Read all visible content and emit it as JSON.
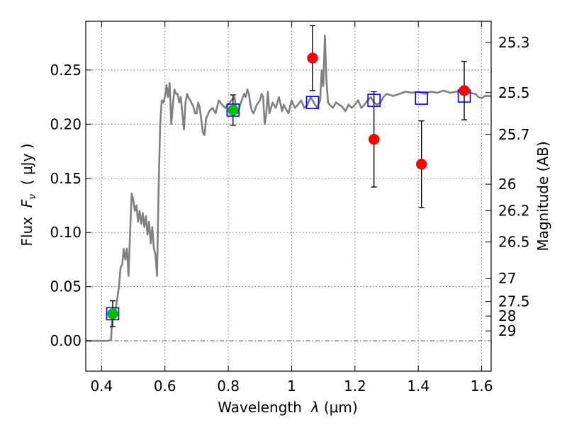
{
  "chart_data": {
    "type": "scatter",
    "xlabel_text": "Wavelength",
    "xlabel_symbol": "λ",
    "xlabel_unit": "(μm)",
    "ylabel_text": "Flux",
    "ylabel_symbol": "F",
    "ylabel_subscript": "ν",
    "ylabel_unit": "( μJy )",
    "y2label": "Magnitude (AB)",
    "xlim": [
      0.35,
      1.63
    ],
    "ylim": [
      -0.028,
      0.295
    ],
    "grid": true,
    "grid_style": "dotted",
    "xticks": [
      {
        "value": 0.4,
        "label": "0.4"
      },
      {
        "value": 0.6,
        "label": "0.6"
      },
      {
        "value": 0.8,
        "label": "0.8"
      },
      {
        "value": 1.0,
        "label": "1"
      },
      {
        "value": 1.2,
        "label": "1.2"
      },
      {
        "value": 1.4,
        "label": "1.4"
      },
      {
        "value": 1.6,
        "label": "1.6"
      }
    ],
    "yticks": [
      {
        "value": 0.0,
        "label": "0.00"
      },
      {
        "value": 0.05,
        "label": "0.05"
      },
      {
        "value": 0.1,
        "label": "0.10"
      },
      {
        "value": 0.15,
        "label": "0.15"
      },
      {
        "value": 0.2,
        "label": "0.20"
      },
      {
        "value": 0.25,
        "label": "0.25"
      }
    ],
    "magnitude_ticks": [
      {
        "mag": 25.3,
        "label": "25.3"
      },
      {
        "mag": 25.5,
        "label": "25.5"
      },
      {
        "mag": 25.7,
        "label": "25.7"
      },
      {
        "mag": 26.0,
        "label": "26"
      },
      {
        "mag": 26.2,
        "label": "26.2"
      },
      {
        "mag": 26.5,
        "label": "26.5"
      },
      {
        "mag": 27.0,
        "label": "27"
      },
      {
        "mag": 27.5,
        "label": "27.5"
      },
      {
        "mag": 28.0,
        "label": "28"
      },
      {
        "mag": 29.0,
        "label": "29"
      }
    ],
    "zero_line": {
      "value": 0.0,
      "color": "#555555",
      "style": "dash-dot"
    },
    "series": [
      {
        "kind": "line",
        "role": "model-sed",
        "color": "#808080",
        "points": [
          [
            0.35,
            0.0
          ],
          [
            0.42,
            0.0
          ],
          [
            0.43,
            0.001
          ],
          [
            0.433,
            0.02
          ],
          [
            0.44,
            0.02
          ],
          [
            0.45,
            0.04
          ],
          [
            0.455,
            0.05
          ],
          [
            0.46,
            0.068
          ],
          [
            0.465,
            0.07
          ],
          [
            0.47,
            0.085
          ],
          [
            0.475,
            0.075
          ],
          [
            0.48,
            0.085
          ],
          [
            0.485,
            0.06
          ],
          [
            0.49,
            0.1
          ],
          [
            0.495,
            0.136
          ],
          [
            0.5,
            0.13
          ],
          [
            0.505,
            0.12
          ],
          [
            0.51,
            0.125
          ],
          [
            0.515,
            0.11
          ],
          [
            0.52,
            0.12
          ],
          [
            0.525,
            0.108
          ],
          [
            0.53,
            0.118
          ],
          [
            0.535,
            0.105
          ],
          [
            0.54,
            0.115
          ],
          [
            0.545,
            0.098
          ],
          [
            0.55,
            0.11
          ],
          [
            0.555,
            0.09
          ],
          [
            0.56,
            0.105
          ],
          [
            0.565,
            0.085
          ],
          [
            0.57,
            0.08
          ],
          [
            0.575,
            0.06
          ],
          [
            0.58,
            0.14
          ],
          [
            0.585,
            0.2
          ],
          [
            0.59,
            0.222
          ],
          [
            0.595,
            0.22
          ],
          [
            0.6,
            0.225
          ],
          [
            0.605,
            0.236
          ],
          [
            0.61,
            0.225
          ],
          [
            0.615,
            0.238
          ],
          [
            0.62,
            0.2
          ],
          [
            0.625,
            0.218
          ],
          [
            0.63,
            0.232
          ],
          [
            0.635,
            0.228
          ],
          [
            0.64,
            0.228
          ],
          [
            0.645,
            0.22
          ],
          [
            0.65,
            0.225
          ],
          [
            0.655,
            0.21
          ],
          [
            0.66,
            0.195
          ],
          [
            0.665,
            0.22
          ],
          [
            0.67,
            0.228
          ],
          [
            0.675,
            0.224
          ],
          [
            0.68,
            0.222
          ],
          [
            0.69,
            0.216
          ],
          [
            0.695,
            0.21
          ],
          [
            0.7,
            0.21
          ],
          [
            0.705,
            0.22
          ],
          [
            0.71,
            0.215
          ],
          [
            0.72,
            0.192
          ],
          [
            0.725,
            0.19
          ],
          [
            0.73,
            0.205
          ],
          [
            0.74,
            0.212
          ],
          [
            0.75,
            0.215
          ],
          [
            0.76,
            0.21
          ],
          [
            0.77,
            0.222
          ],
          [
            0.78,
            0.218
          ],
          [
            0.79,
            0.215
          ],
          [
            0.8,
            0.218
          ],
          [
            0.81,
            0.222
          ],
          [
            0.82,
            0.225
          ],
          [
            0.825,
            0.213
          ],
          [
            0.83,
            0.21
          ],
          [
            0.84,
            0.22
          ],
          [
            0.85,
            0.228
          ],
          [
            0.855,
            0.225
          ],
          [
            0.86,
            0.232
          ],
          [
            0.865,
            0.228
          ],
          [
            0.87,
            0.218
          ],
          [
            0.875,
            0.212
          ],
          [
            0.88,
            0.21
          ],
          [
            0.89,
            0.218
          ],
          [
            0.9,
            0.222
          ],
          [
            0.905,
            0.228
          ],
          [
            0.91,
            0.225
          ],
          [
            0.915,
            0.2
          ],
          [
            0.92,
            0.21
          ],
          [
            0.925,
            0.23
          ],
          [
            0.93,
            0.21
          ],
          [
            0.935,
            0.215
          ],
          [
            0.94,
            0.22
          ],
          [
            0.95,
            0.215
          ],
          [
            0.96,
            0.225
          ],
          [
            0.97,
            0.212
          ],
          [
            0.975,
            0.218
          ],
          [
            0.98,
            0.215
          ],
          [
            0.99,
            0.21
          ],
          [
            1.0,
            0.222
          ],
          [
            1.01,
            0.215
          ],
          [
            1.02,
            0.218
          ],
          [
            1.03,
            0.222
          ],
          [
            1.04,
            0.215
          ],
          [
            1.05,
            0.218
          ],
          [
            1.06,
            0.225
          ],
          [
            1.07,
            0.22
          ],
          [
            1.08,
            0.215
          ],
          [
            1.09,
            0.222
          ],
          [
            1.095,
            0.25
          ],
          [
            1.1,
            0.235
          ],
          [
            1.105,
            0.282
          ],
          [
            1.11,
            0.24
          ],
          [
            1.115,
            0.22
          ],
          [
            1.12,
            0.218
          ],
          [
            1.13,
            0.215
          ],
          [
            1.14,
            0.22
          ],
          [
            1.15,
            0.218
          ],
          [
            1.16,
            0.216
          ],
          [
            1.17,
            0.212
          ],
          [
            1.18,
            0.218
          ],
          [
            1.19,
            0.215
          ],
          [
            1.2,
            0.218
          ],
          [
            1.21,
            0.222
          ],
          [
            1.22,
            0.215
          ],
          [
            1.23,
            0.218
          ],
          [
            1.24,
            0.222
          ],
          [
            1.25,
            0.225
          ],
          [
            1.26,
            0.22
          ],
          [
            1.27,
            0.218
          ],
          [
            1.28,
            0.22
          ],
          [
            1.29,
            0.225
          ],
          [
            1.3,
            0.228
          ],
          [
            1.32,
            0.226
          ],
          [
            1.34,
            0.228
          ],
          [
            1.36,
            0.23
          ],
          [
            1.38,
            0.229
          ],
          [
            1.4,
            0.23
          ],
          [
            1.42,
            0.228
          ],
          [
            1.44,
            0.23
          ],
          [
            1.46,
            0.229
          ],
          [
            1.48,
            0.231
          ],
          [
            1.5,
            0.229
          ],
          [
            1.52,
            0.23
          ],
          [
            1.54,
            0.231
          ],
          [
            1.56,
            0.229
          ],
          [
            1.58,
            0.228
          ],
          [
            1.59,
            0.225
          ],
          [
            1.6,
            0.224
          ],
          [
            1.61,
            0.226
          ],
          [
            1.63,
            0.226
          ]
        ]
      },
      {
        "kind": "open-squares",
        "role": "model-photometry",
        "color": "#0000ff",
        "points": [
          [
            0.435,
            0.025
          ],
          [
            0.815,
            0.213
          ],
          [
            1.066,
            0.22
          ],
          [
            1.26,
            0.222
          ],
          [
            1.41,
            0.224
          ],
          [
            1.545,
            0.226
          ]
        ]
      },
      {
        "kind": "filled-circles-with-errors",
        "role": "observed-green",
        "color": "#00bb00",
        "points": [
          {
            "x": 0.435,
            "y": 0.025,
            "yerr": 0.012
          },
          {
            "x": 0.815,
            "y": 0.213,
            "yerr": 0.014
          }
        ]
      },
      {
        "kind": "filled-circles-with-errors",
        "role": "observed-red",
        "color": "#ff0000",
        "points": [
          {
            "x": 1.066,
            "y": 0.261,
            "yerr": 0.03
          },
          {
            "x": 1.26,
            "y": 0.186,
            "yerr": 0.044
          },
          {
            "x": 1.41,
            "y": 0.163,
            "yerr": 0.04
          },
          {
            "x": 1.545,
            "y": 0.231,
            "yerr": 0.027
          }
        ]
      }
    ]
  }
}
